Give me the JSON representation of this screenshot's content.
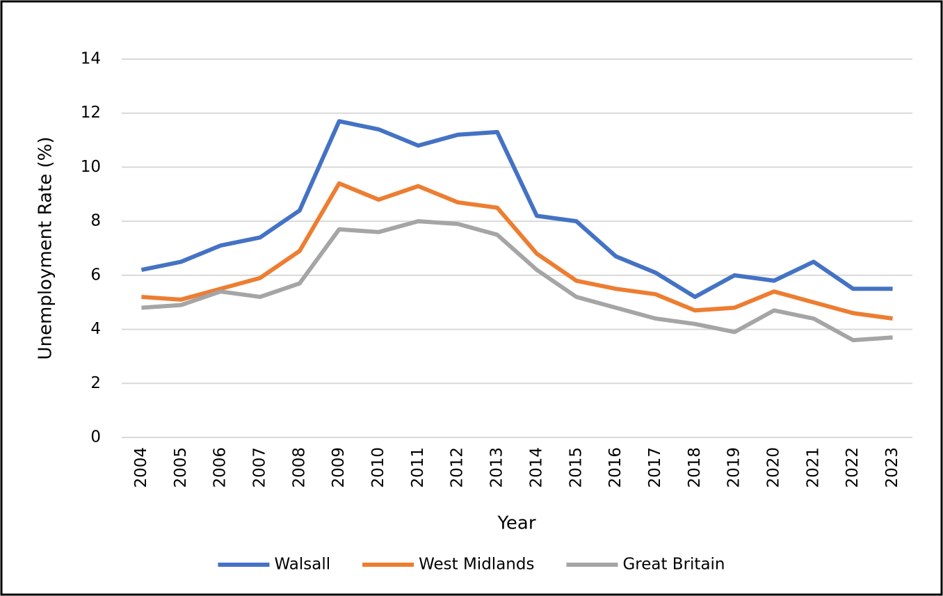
{
  "chart_data": {
    "type": "line",
    "x_label": "Year",
    "y_label": "Unemployment Rate (%)",
    "categories": [
      "2004",
      "2005",
      "2006",
      "2007",
      "2008",
      "2009",
      "2010",
      "2011",
      "2012",
      "2013",
      "2014",
      "2015",
      "2016",
      "2017",
      "2018",
      "2019",
      "2020",
      "2021",
      "2022",
      "2023"
    ],
    "series": [
      {
        "name": "Walsall",
        "color": "#4472c4",
        "values": [
          6.2,
          6.5,
          7.1,
          7.4,
          8.4,
          11.7,
          11.4,
          10.8,
          11.2,
          11.3,
          8.2,
          8.0,
          6.7,
          6.1,
          5.2,
          6.0,
          5.8,
          6.5,
          5.5,
          5.5
        ]
      },
      {
        "name": "West Midlands",
        "color": "#ed7d31",
        "values": [
          5.2,
          5.1,
          5.5,
          5.9,
          6.9,
          9.4,
          8.8,
          9.3,
          8.7,
          8.5,
          6.8,
          5.8,
          5.5,
          5.3,
          4.7,
          4.8,
          5.4,
          5.0,
          4.6,
          4.4
        ]
      },
      {
        "name": "Great Britain",
        "color": "#a5a5a5",
        "values": [
          4.8,
          4.9,
          5.4,
          5.2,
          5.7,
          7.7,
          7.6,
          8.0,
          7.9,
          7.5,
          6.2,
          5.2,
          4.8,
          4.4,
          4.2,
          3.9,
          4.7,
          4.4,
          3.6,
          3.7
        ]
      }
    ],
    "ylim": [
      0,
      14
    ],
    "yticks": [
      0,
      2,
      4,
      6,
      8,
      10,
      12,
      14
    ],
    "grid": true,
    "legend": "bottom"
  }
}
